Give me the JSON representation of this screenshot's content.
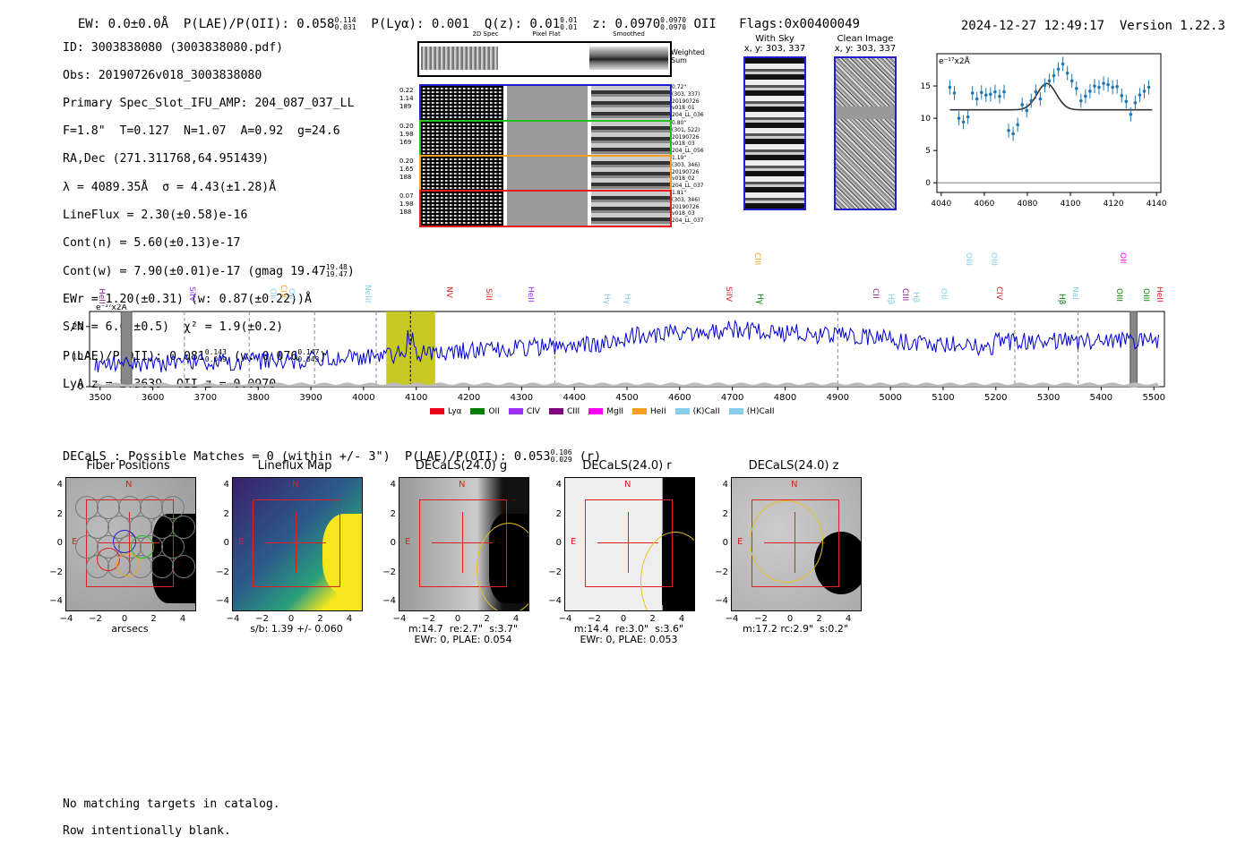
{
  "header": {
    "ew_label": "EW: 0.0±0.0Å",
    "plae_label": "P(LAE)/P(OII): 0.058",
    "plae_hi": "0.114",
    "plae_lo": "0.031",
    "plya_label": "P(Lyα): 0.001",
    "qz_label": "Q(z): 0.01",
    "qz_hi": "0.01",
    "qz_lo": "0.01",
    "z_label": "z: 0.0970",
    "z_hi": "0.0970",
    "z_lo": "0.0970",
    "z_line": "OII",
    "flags": "Flags:0x00400049",
    "timestamp": "2024-12-27 12:49:17",
    "version": "Version 1.22.3"
  },
  "info": {
    "id": "ID: 3003838080 (3003838080.pdf)",
    "obs": "Obs: 20190726v018_3003838080",
    "primary": "Primary Spec_Slot_IFU_AMP: 204_087_037_LL",
    "params": "F=1.8\"  T=0.127  N=1.07  A=0.92  g=24.6",
    "radec": "RA,Dec (271.311768,64.951439)",
    "lambda": "λ = 4089.35Å  σ = 4.43(±1.28)Å",
    "lineflux": "LineFlux = 2.30(±0.58)e-16",
    "contn": "Cont(n) = 5.60(±0.13)e-17",
    "contw": "Cont(w) = 7.90(±0.01)e-17 (gmag 19.47",
    "contw_hi": "19.48",
    "contw_lo": "19.47",
    "contw_end": ")",
    "ewr": "EWr = 1.20(±0.31) (w: 0.87(±0.22))Å",
    "sn": "S/N = 6.6(±0.5)  χ² = 1.9(±0.2)",
    "plae2": "P(LAE)/P(OII): 0.081",
    "plae2_hi": "0.143",
    "plae2_lo": "0.049",
    "plae2_w": "(w: 0.076",
    "plae2_w_hi": "0.147",
    "plae2_w_lo": "0.043",
    "plae2_end": ")",
    "lyaz": "LyA z = 2.3639  OII z = 0.0970"
  },
  "spec2d": {
    "col_titles": [
      "2D Spec",
      "Pixel Flat",
      "Smoothed"
    ],
    "weighted_sum_label": "Weighted\nSum",
    "rows": [
      {
        "left": [
          "0.22",
          "1.14",
          "189"
        ],
        "right": [
          "0.72\"",
          "(303, 337)",
          "20190726",
          "v018_01",
          "204_LL_036"
        ],
        "color": "#1f1fd0"
      },
      {
        "left": [
          "0.20",
          "1.98",
          "169"
        ],
        "right": [
          "0.80\"",
          "(301, 522)",
          "20190726",
          "v018_03",
          "204_LL_056"
        ],
        "color": "#22c022"
      },
      {
        "left": [
          "0.20",
          "1.65",
          "188"
        ],
        "right": [
          "1.19\"",
          "(303, 346)",
          "20190726",
          "v018_02",
          "204_LL_037"
        ],
        "color": "#f5a020"
      },
      {
        "left": [
          "0.07",
          "1.98",
          "188"
        ],
        "right": [
          "1.81\"",
          "(303, 346)",
          "20190726",
          "v018_03",
          "204_LL_037"
        ],
        "color": "#e02020"
      }
    ]
  },
  "cutouts": {
    "with_sky_title": "With Sky",
    "with_sky_coords": "x, y: 303, 337",
    "clean_title": "Clean Image",
    "clean_coords": "x, y: 303, 337"
  },
  "zoom_plot": {
    "ylabel": "e⁻¹⁷x2Å",
    "x_ticks": [
      "4040",
      "4060",
      "4080",
      "4100",
      "4120",
      "4140"
    ],
    "y_ticks": [
      "0",
      "5",
      "10",
      "15"
    ]
  },
  "full_spec": {
    "ylabel": "e⁻¹⁷x2Å",
    "x_ticks": [
      "3500",
      "3600",
      "3700",
      "3800",
      "3900",
      "4000",
      "4100",
      "4200",
      "4300",
      "4400",
      "4500",
      "4600",
      "4700",
      "4800",
      "4900",
      "5000",
      "5100",
      "5200",
      "5300",
      "5400",
      "5500"
    ],
    "y_ticks": [
      "0",
      "10",
      "20"
    ],
    "line_labels": [
      {
        "t": "HeII",
        "c": "#8b1a8b"
      },
      {
        "t": "SiIV",
        "c": "#9b30ff"
      },
      {
        "t": "OII",
        "c": "#87ceeb"
      },
      {
        "t": "CIV",
        "c": "#f5a020"
      },
      {
        "t": "OII",
        "c": "#87ceeb"
      },
      {
        "t": "NeIII",
        "c": "#87ceeb"
      },
      {
        "t": "NV",
        "c": "#e02020"
      },
      {
        "t": "SiII",
        "c": "#e02020"
      },
      {
        "t": "HeII",
        "c": "#9b30ff"
      },
      {
        "t": "Hγ",
        "c": "#87ceeb"
      },
      {
        "t": "Hγ",
        "c": "#87ceeb"
      },
      {
        "t": "SiIV",
        "c": "#e02020"
      },
      {
        "t": "CIII",
        "c": "#f5a020"
      },
      {
        "t": "Hγ",
        "c": "#008000"
      },
      {
        "t": "CII",
        "c": "#8b1a8b"
      },
      {
        "t": "Hβ",
        "c": "#87ceeb"
      },
      {
        "t": "CIII",
        "c": "#8b1a8b"
      },
      {
        "t": "Hβ",
        "c": "#87ceeb"
      },
      {
        "t": "OII",
        "c": "#87ceeb"
      },
      {
        "t": "OIII",
        "c": "#87ceeb"
      },
      {
        "t": "OIII",
        "c": "#87ceeb"
      },
      {
        "t": "CIV",
        "c": "#e02020"
      },
      {
        "t": "Hβ",
        "c": "#008000"
      },
      {
        "t": "NaI",
        "c": "#87ceeb"
      },
      {
        "t": "OII",
        "c": "#ff00ff"
      },
      {
        "t": "OIII",
        "c": "#008000"
      },
      {
        "t": "OIII",
        "c": "#008000"
      },
      {
        "t": "HeII",
        "c": "#e02020"
      }
    ],
    "legend": [
      {
        "label": "Lyα",
        "color": "#e8001c"
      },
      {
        "label": "OII",
        "color": "#008000"
      },
      {
        "label": "CIV",
        "color": "#9b30ff"
      },
      {
        "label": "CIII",
        "color": "#800080"
      },
      {
        "label": "MgII",
        "color": "#ff00ff"
      },
      {
        "label": "HeII",
        "color": "#f5a020"
      },
      {
        "label": "(K)CaII",
        "color": "#87ceeb"
      },
      {
        "label": "(H)CaII",
        "color": "#87ceeb"
      }
    ]
  },
  "decals_line": {
    "text": "DECaLS : Possible Matches = 0 (within +/- 3\")  P(LAE)/P(OII): 0.053",
    "hi": "0.106",
    "lo": "0.029",
    "end": "(r)"
  },
  "panels": [
    {
      "title": "Fiber Positions",
      "caption": "arcsecs"
    },
    {
      "title": "Lineflux Map",
      "caption": "s/b: 1.39 +/- 0.060"
    },
    {
      "title": "DECaLS(24.0) g",
      "caption": "m:14.7  re:2.7\"  s:3.7\"\nEWr: 0, PLAE: 0.054"
    },
    {
      "title": "DECaLS(24.0) r",
      "caption": "m:14.4  re:3.0\"  s:3.6\"\nEWr: 0, PLAE: 0.053"
    },
    {
      "title": "DECaLS(24.0) z",
      "caption": "m:17.2 rc:2.9\"  s:0.2\""
    }
  ],
  "panel_axes": {
    "x_ticks": [
      "−4",
      "−2",
      "0",
      "2",
      "4"
    ],
    "y_ticks": [
      "4",
      "2",
      "0",
      "−2",
      "−4"
    ],
    "north": "N",
    "east": "E"
  },
  "footer": {
    "line1": "No matching targets in catalog.",
    "line2": "Row intentionally blank."
  },
  "colors": {
    "blue_line": "#0000cc",
    "red_box": "#e02020",
    "yellow_band": "#c0c000",
    "fit_line": "#333333",
    "zoom_points": "#1f77b4"
  }
}
